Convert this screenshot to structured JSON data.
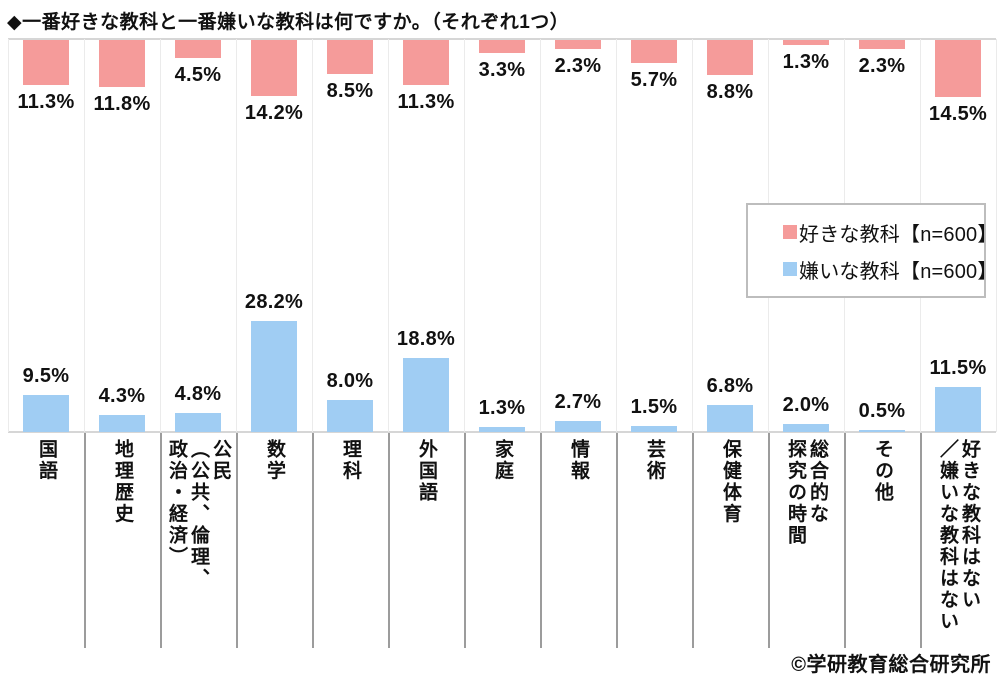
{
  "title": "◆一番好きな教科と一番嫌いな教科は何ですか。（それぞれ1つ）",
  "legend": {
    "items": [
      {
        "label": "好きな教科【n=600】",
        "color": "#f59b9a"
      },
      {
        "label": "嫌いな教科【n=600】",
        "color": "#a0cdf3"
      }
    ]
  },
  "footer": {
    "copyright": "©学研教育総合研究所"
  },
  "chart_data": {
    "type": "bar",
    "layout": "paired columns: liked bars hang downward from top edge, disliked bars rise upward from bottom baseline; data labels at bar ends; vertical category labels below baseline; legend boxed at middle right",
    "unit": "%",
    "categories": [
      "国語",
      "地理歴史",
      "公民（公共、倫理、政治・経済）",
      "数学",
      "理科",
      "外国語",
      "家庭",
      "情報",
      "芸術",
      "保健体育",
      "総合的な探究の時間",
      "その他",
      "好きな教科はない／嫌いな教科はない"
    ],
    "categories_display": [
      "国語",
      "地理歴史",
      "公民\n（公共、倫理、\n政治・経済）",
      "数学",
      "理科",
      "外国語",
      "家庭",
      "情報",
      "芸術",
      "保健体育",
      "総合的な\n探究の時間",
      "その他",
      "好きな教科はない\n／嫌いな教科はない"
    ],
    "series": [
      {
        "name": "好きな教科",
        "n": 600,
        "color": "#f59b9a",
        "values": [
          11.3,
          11.8,
          4.5,
          14.2,
          8.5,
          11.3,
          3.3,
          2.3,
          5.7,
          8.8,
          1.3,
          2.3,
          14.5
        ]
      },
      {
        "name": "嫌いな教科",
        "n": 600,
        "color": "#a0cdf3",
        "values": [
          9.5,
          4.3,
          4.8,
          28.2,
          8.0,
          18.8,
          1.3,
          2.7,
          1.5,
          6.8,
          2.0,
          0.5,
          11.5
        ]
      }
    ]
  }
}
